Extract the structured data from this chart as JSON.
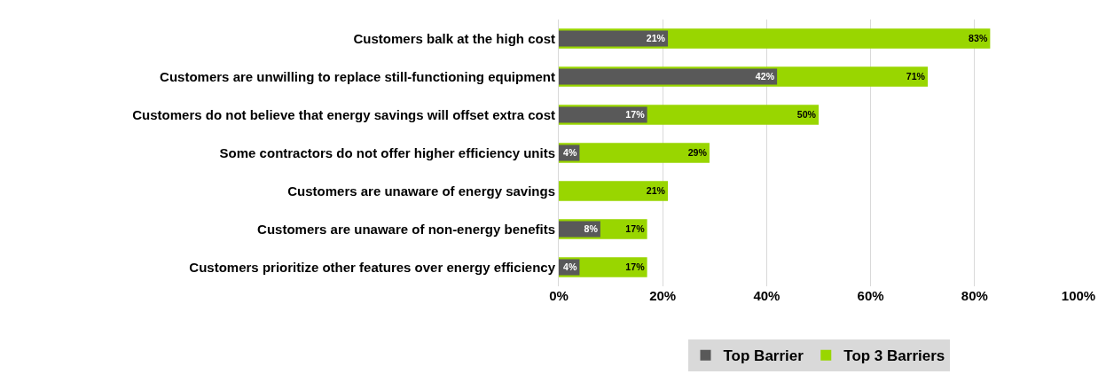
{
  "chart_data": {
    "type": "bar",
    "orientation": "horizontal",
    "categories": [
      "Customers balk at the high cost",
      "Customers are unwilling to replace still-functioning equipment",
      "Customers do not believe that energy savings will offset extra cost",
      "Some contractors do not offer higher efficiency units",
      "Customers are unaware of energy savings",
      "Customers are unaware of non-energy benefits",
      "Customers prioritize other features over energy efficiency"
    ],
    "series": [
      {
        "name": "Top Barrier",
        "color": "#595959",
        "values": [
          21,
          42,
          17,
          4,
          null,
          8,
          4
        ],
        "value_labels": [
          "21%",
          "42%",
          "17%",
          "4%",
          null,
          "8%",
          "4%"
        ]
      },
      {
        "name": "Top 3 Barriers",
        "color": "#99d600",
        "values": [
          83,
          71,
          50,
          29,
          21,
          17,
          17
        ],
        "value_labels": [
          "83%",
          "71%",
          "50%",
          "29%",
          "21%",
          "17%",
          "17%"
        ]
      }
    ],
    "xlim": [
      0,
      100
    ],
    "xticks": [
      {
        "value": 0,
        "label": "0%"
      },
      {
        "value": 20,
        "label": "20%"
      },
      {
        "value": 40,
        "label": "40%"
      },
      {
        "value": 60,
        "label": "60%"
      },
      {
        "value": 80,
        "label": "80%"
      },
      {
        "value": 100,
        "label": "100%"
      }
    ],
    "grid": "x",
    "legend": "bottom"
  }
}
